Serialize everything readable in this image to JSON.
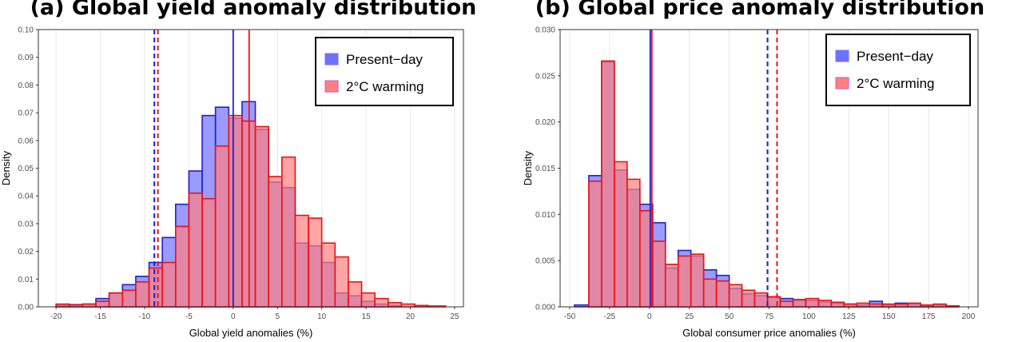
{
  "chart_data": [
    {
      "type": "histogram",
      "title": "(a) Global yield anomaly distribution",
      "xlabel": "Global yield anomalies (%)",
      "ylabel": "Density",
      "xlim": [
        -22,
        26
      ],
      "ylim": [
        0,
        0.1
      ],
      "xticks": [
        -20,
        -15,
        -10,
        -5,
        0,
        5,
        10,
        15,
        20,
        25
      ],
      "yticks": [
        "0.00",
        "0.01",
        "0.02",
        "0.03",
        "0.04",
        "0.05",
        "0.06",
        "0.07",
        "0.08",
        "0.09",
        "0.10"
      ],
      "grid": "vertical",
      "legend_position": "top-right",
      "series": [
        {
          "name": "Present−day",
          "color": "#1f1fcc",
          "fill": "#7070ff",
          "bins": [
            [
              -20,
              -18.5,
              0.0005
            ],
            [
              -18.5,
              -17,
              0.0008
            ],
            [
              -17,
              -15.5,
              0.001
            ],
            [
              -15.5,
              -14,
              0.003
            ],
            [
              -14,
              -12.5,
              0.005
            ],
            [
              -12.5,
              -11,
              0.008
            ],
            [
              -11,
              -9.5,
              0.011
            ],
            [
              -9.5,
              -8,
              0.016
            ],
            [
              -8,
              -6.5,
              0.025
            ],
            [
              -6.5,
              -5,
              0.037
            ],
            [
              -5,
              -3.5,
              0.049
            ],
            [
              -3.5,
              -2,
              0.069
            ],
            [
              -2,
              -0.5,
              0.072
            ],
            [
              -0.5,
              1,
              0.068
            ],
            [
              1,
              2.5,
              0.074
            ],
            [
              2.5,
              4,
              0.064
            ],
            [
              4,
              5.5,
              0.045
            ],
            [
              5.5,
              7,
              0.043
            ],
            [
              7,
              8.5,
              0.023
            ],
            [
              8.5,
              10,
              0.022
            ],
            [
              10,
              11.5,
              0.016
            ],
            [
              11.5,
              13,
              0.005
            ],
            [
              13,
              14.5,
              0.004
            ],
            [
              14.5,
              16,
              0.002
            ],
            [
              16,
              17.5,
              0.001
            ],
            [
              17.5,
              19,
              0.0005
            ]
          ],
          "mean": 0,
          "percentile_5": -8.9
        },
        {
          "name": "2°C warming",
          "color": "#ee1111",
          "fill": "#ff7f7f",
          "bins": [
            [
              -20,
              -18.5,
              0.001
            ],
            [
              -18.5,
              -17,
              0.0007
            ],
            [
              -17,
              -15.5,
              0.001
            ],
            [
              -15.5,
              -14,
              0.002
            ],
            [
              -14,
              -12.5,
              0.005
            ],
            [
              -12.5,
              -11,
              0.006
            ],
            [
              -11,
              -9.5,
              0.009
            ],
            [
              -9.5,
              -8,
              0.014
            ],
            [
              -8,
              -6.5,
              0.016
            ],
            [
              -6.5,
              -5,
              0.029
            ],
            [
              -5,
              -3.5,
              0.041
            ],
            [
              -3.5,
              -2,
              0.039
            ],
            [
              -2,
              -0.5,
              0.058
            ],
            [
              -0.5,
              1,
              0.069
            ],
            [
              1,
              2.5,
              0.067
            ],
            [
              2.5,
              4,
              0.065
            ],
            [
              4,
              5.5,
              0.047
            ],
            [
              5.5,
              7,
              0.054
            ],
            [
              7,
              8.5,
              0.033
            ],
            [
              8.5,
              10,
              0.032
            ],
            [
              10,
              11.5,
              0.023
            ],
            [
              11.5,
              13,
              0.018
            ],
            [
              13,
              14.5,
              0.009
            ],
            [
              14.5,
              16,
              0.005
            ],
            [
              16,
              17.5,
              0.003
            ],
            [
              17.5,
              19,
              0.0015
            ],
            [
              19,
              20.5,
              0.001
            ],
            [
              20.5,
              22,
              0.0005
            ],
            [
              22,
              24,
              0.0003
            ]
          ],
          "mean": 1.8,
          "percentile_5": -8.5
        }
      ]
    },
    {
      "type": "histogram",
      "title": "(b) Global price anomaly distribution",
      "xlabel": "Global consumer price anomalies (%)",
      "ylabel": "Density",
      "xlim": [
        -56,
        206
      ],
      "ylim": [
        0,
        0.03
      ],
      "xticks": [
        -50,
        -25,
        0,
        25,
        50,
        75,
        100,
        125,
        150,
        175,
        200
      ],
      "yticks": [
        "0.000",
        "0.005",
        "0.010",
        "0.015",
        "0.020",
        "0.025",
        "0.030"
      ],
      "grid": "vertical",
      "legend_position": "top-right",
      "series": [
        {
          "name": "Present−day",
          "color": "#1f1fcc",
          "fill": "#7070ff",
          "bins": [
            [
              -47,
              -38,
              0.0002
            ],
            [
              -38,
              -30,
              0.0142
            ],
            [
              -30,
              -22,
              0.0265
            ],
            [
              -22,
              -14,
              0.0148
            ],
            [
              -14,
              -6,
              0.0127
            ],
            [
              -6,
              2,
              0.0111
            ],
            [
              2,
              10,
              0.0091
            ],
            [
              10,
              18,
              0.0042
            ],
            [
              18,
              26,
              0.0061
            ],
            [
              26,
              34,
              0.0055
            ],
            [
              34,
              42,
              0.004
            ],
            [
              42,
              50,
              0.0034
            ],
            [
              50,
              58,
              0.002
            ],
            [
              58,
              66,
              0.0014
            ],
            [
              66,
              74,
              0.0012
            ],
            [
              74,
              82,
              0.001
            ],
            [
              82,
              90,
              0.0009
            ],
            [
              90,
              98,
              0.0007
            ],
            [
              98,
              106,
              0.0007
            ],
            [
              106,
              114,
              0.0005
            ],
            [
              114,
              122,
              0.0004
            ],
            [
              122,
              130,
              0.0003
            ],
            [
              130,
              138,
              0.0002
            ],
            [
              138,
              146,
              0.0006
            ],
            [
              146,
              154,
              0.0002
            ],
            [
              154,
              162,
              0.0004
            ],
            [
              162,
              170,
              0.0003
            ],
            [
              170,
              178,
              0.0001
            ],
            [
              178,
              186,
              0.0002
            ],
            [
              186,
              194,
              0.0001
            ]
          ],
          "mean": 0.5,
          "percentile_95": 74
        },
        {
          "name": "2°C warming",
          "color": "#ee1111",
          "fill": "#ff7f7f",
          "bins": [
            [
              -38,
              -30,
              0.0136
            ],
            [
              -30,
              -22,
              0.0266
            ],
            [
              -22,
              -14,
              0.0157
            ],
            [
              -14,
              -6,
              0.0138
            ],
            [
              -6,
              2,
              0.0104
            ],
            [
              2,
              10,
              0.0071
            ],
            [
              10,
              18,
              0.0046
            ],
            [
              18,
              26,
              0.0055
            ],
            [
              26,
              34,
              0.0057
            ],
            [
              34,
              42,
              0.003
            ],
            [
              42,
              50,
              0.0028
            ],
            [
              50,
              58,
              0.0024
            ],
            [
              58,
              66,
              0.0018
            ],
            [
              66,
              74,
              0.0015
            ],
            [
              74,
              82,
              0.0011
            ],
            [
              82,
              90,
              0.0006
            ],
            [
              90,
              98,
              0.0008
            ],
            [
              98,
              106,
              0.0009
            ],
            [
              106,
              114,
              0.0007
            ],
            [
              114,
              122,
              0.0005
            ],
            [
              122,
              130,
              0.0003
            ],
            [
              130,
              138,
              0.0004
            ],
            [
              138,
              146,
              0.0003
            ],
            [
              146,
              154,
              0.0003
            ],
            [
              154,
              162,
              0.0003
            ],
            [
              162,
              170,
              0.0004
            ],
            [
              170,
              178,
              0.0002
            ],
            [
              178,
              186,
              0.0003
            ],
            [
              186,
              194,
              0.0001
            ]
          ],
          "mean": 1.5,
          "percentile_95": 80
        }
      ]
    }
  ]
}
